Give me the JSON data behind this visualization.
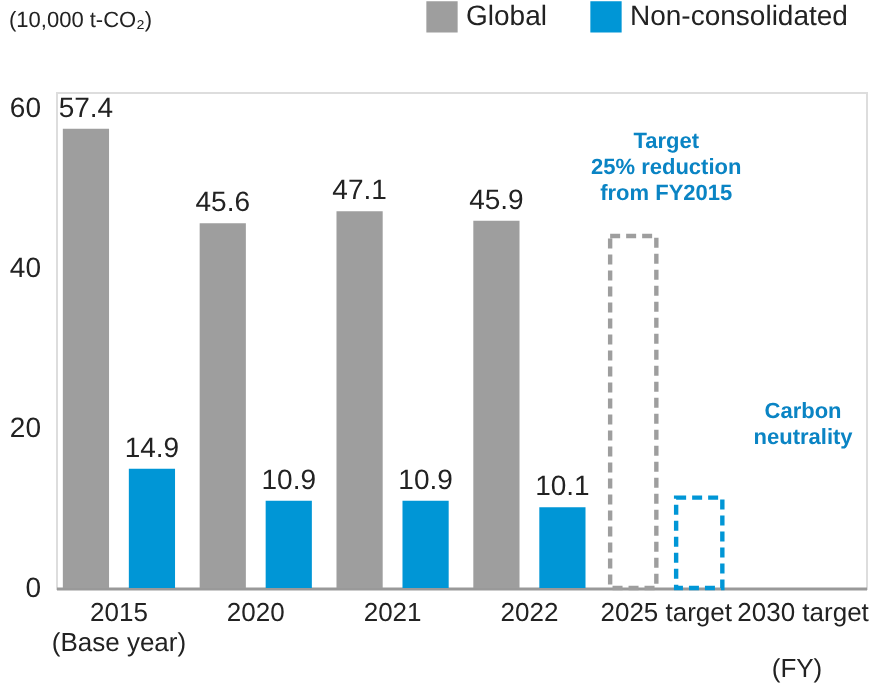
{
  "chart_data": {
    "type": "bar",
    "ylabel": "(10,000 t-CO₂)",
    "xlabel": "(FY)",
    "categories": [
      "2015\n(Base year)",
      "2020",
      "2021",
      "2022",
      "2025 target",
      "2030 target"
    ],
    "series": [
      {
        "name": "Global",
        "color": "#9e9e9e",
        "values": [
          57.4,
          45.6,
          47.1,
          45.9,
          44,
          null
        ],
        "value_labels": [
          "57.4",
          "45.6",
          "47.1",
          "45.9",
          null,
          null
        ],
        "line_style": [
          "solid",
          "solid",
          "solid",
          "solid",
          "dashed",
          null
        ]
      },
      {
        "name": "Non-consolidated",
        "color": "#0096d6",
        "values": [
          14.9,
          10.9,
          10.9,
          10.1,
          11.3,
          null
        ],
        "value_labels": [
          "14.9",
          "10.9",
          "10.9",
          "10.1",
          null,
          null
        ],
        "line_style": [
          "solid",
          "solid",
          "solid",
          "solid",
          "dashed",
          null
        ]
      }
    ],
    "ylim": [
      0,
      62
    ],
    "yticks": [
      0,
      20,
      40,
      60
    ],
    "grid": false,
    "legend": "top right",
    "annotations": [
      "Target\n25% reduction\nfrom FY2015",
      "Carbon\nneutrality"
    ]
  }
}
